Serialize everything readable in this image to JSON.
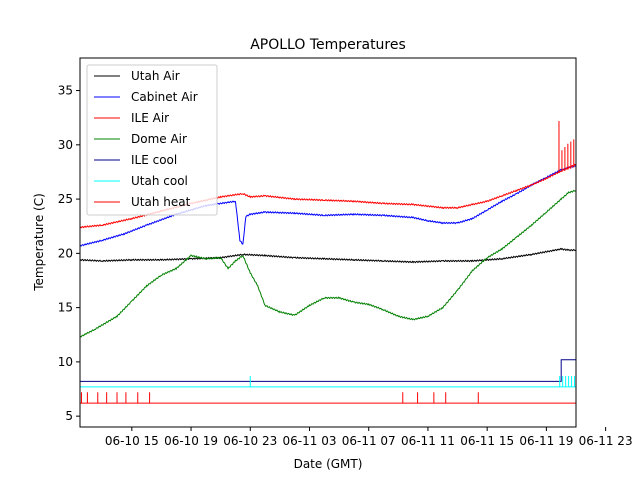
{
  "chart_data": {
    "type": "line",
    "title": "APOLLO Temperatures",
    "xlabel": "Date (GMT)",
    "ylabel": "Temperature (C)",
    "ylim": [
      4,
      38
    ],
    "xlim": [
      11.5,
      45.0
    ],
    "x_unit": "hours since 06-10 00:00 GMT",
    "grid": false,
    "legend_position": "top-left",
    "x_ticks": [
      {
        "x": 15,
        "label": "06-10 15"
      },
      {
        "x": 19,
        "label": "06-10 19"
      },
      {
        "x": 23,
        "label": "06-10 23"
      },
      {
        "x": 27,
        "label": "06-11 03"
      },
      {
        "x": 31,
        "label": "06-11 07"
      },
      {
        "x": 35,
        "label": "06-11 11"
      },
      {
        "x": 39,
        "label": "06-11 15"
      },
      {
        "x": 43,
        "label": "06-11 19"
      },
      {
        "x": 47,
        "label": "06-11 23"
      }
    ],
    "y_ticks": [
      {
        "y": 5,
        "label": "5"
      },
      {
        "y": 10,
        "label": "10"
      },
      {
        "y": 15,
        "label": "15"
      },
      {
        "y": 20,
        "label": "20"
      },
      {
        "y": 25,
        "label": "25"
      },
      {
        "y": 30,
        "label": "30"
      },
      {
        "y": 35,
        "label": "35"
      }
    ],
    "series": [
      {
        "name": "Utah Air",
        "color": "#000000",
        "kind": "line",
        "x": [
          11.5,
          13,
          15,
          17,
          19,
          21,
          22.5,
          24,
          26,
          28,
          30,
          32,
          34,
          36,
          38,
          40,
          42,
          44,
          44.5,
          45.0
        ],
        "y": [
          19.4,
          19.3,
          19.4,
          19.4,
          19.5,
          19.6,
          19.9,
          19.8,
          19.6,
          19.5,
          19.4,
          19.3,
          19.2,
          19.3,
          19.3,
          19.5,
          19.9,
          20.4,
          20.3,
          20.3
        ]
      },
      {
        "name": "Cabinet Air",
        "color": "#0000ff",
        "kind": "line",
        "x": [
          11.5,
          13,
          14.5,
          16,
          18,
          20,
          22,
          22.3,
          22.5,
          22.7,
          23,
          24,
          26,
          28,
          30,
          32,
          34,
          35,
          36,
          37,
          38,
          39,
          40,
          41,
          42,
          43,
          44,
          44.5,
          45.0
        ],
        "y": [
          20.7,
          21.2,
          21.8,
          22.6,
          23.6,
          24.4,
          24.8,
          21.2,
          20.8,
          23.4,
          23.6,
          23.8,
          23.7,
          23.5,
          23.6,
          23.5,
          23.3,
          23.0,
          22.8,
          22.8,
          23.2,
          24.0,
          24.8,
          25.5,
          26.3,
          27.0,
          27.7,
          27.9,
          28.1
        ]
      },
      {
        "name": "ILE Air",
        "color": "#ff0000",
        "kind": "line",
        "x": [
          11.5,
          13,
          15,
          17,
          19,
          21,
          22.5,
          23,
          24,
          26,
          28,
          30,
          32,
          34,
          36,
          37,
          38,
          39,
          40,
          41,
          42,
          43,
          44,
          44.5,
          45.0
        ],
        "y": [
          22.4,
          22.6,
          23.2,
          23.9,
          24.6,
          25.2,
          25.5,
          25.2,
          25.3,
          25.0,
          24.9,
          24.8,
          24.6,
          24.5,
          24.2,
          24.2,
          24.5,
          24.8,
          25.3,
          25.8,
          26.3,
          26.9,
          27.6,
          27.9,
          28.2
        ]
      },
      {
        "name": "Dome Air",
        "color": "#008000",
        "kind": "line",
        "x": [
          11.5,
          12.5,
          14,
          15,
          16,
          17,
          18,
          19,
          20,
          21,
          21.5,
          22,
          22.5,
          23,
          23.5,
          24,
          25,
          26,
          27,
          28,
          29,
          30,
          31,
          32,
          33,
          34,
          35,
          36,
          37,
          38,
          39,
          40,
          41,
          42,
          43,
          44,
          44.5,
          45.0
        ],
        "y": [
          12.3,
          13.0,
          14.2,
          15.6,
          17.0,
          18.0,
          18.6,
          19.8,
          19.5,
          19.6,
          18.6,
          19.3,
          19.8,
          18.2,
          17.0,
          15.2,
          14.6,
          14.3,
          15.2,
          15.9,
          15.9,
          15.5,
          15.3,
          14.8,
          14.2,
          13.9,
          14.2,
          15.0,
          16.6,
          18.4,
          19.6,
          20.4,
          21.5,
          22.6,
          23.8,
          25.0,
          25.6,
          25.8
        ]
      },
      {
        "name": "ILE cool",
        "color": "#00008b",
        "kind": "step",
        "x": [
          11.5,
          44.0,
          44.0,
          45.0
        ],
        "y": [
          8.2,
          8.2,
          10.2,
          10.2
        ]
      },
      {
        "name": "Utah cool",
        "color": "#00ffff",
        "kind": "base-spikes",
        "base": 7.7,
        "spike_top": 8.7,
        "spike_x": [
          23.0,
          43.9,
          44.1,
          44.3,
          44.5,
          44.7,
          44.9
        ]
      },
      {
        "name": "Utah heat",
        "color": "#ff0000",
        "kind": "base-spikes",
        "base": 6.2,
        "spike_top": 7.2,
        "spike_x": [
          11.6,
          12.0,
          12.7,
          13.3,
          14.0,
          14.6,
          15.4,
          16.2,
          33.3,
          34.3,
          35.4,
          36.2,
          38.4
        ]
      }
    ],
    "ile_air_spikes": {
      "x": [
        43.85,
        44.05,
        44.25,
        44.45,
        44.65,
        44.85
      ],
      "top": [
        32.2,
        29.5,
        29.8,
        30.1,
        30.3,
        30.5
      ]
    }
  }
}
